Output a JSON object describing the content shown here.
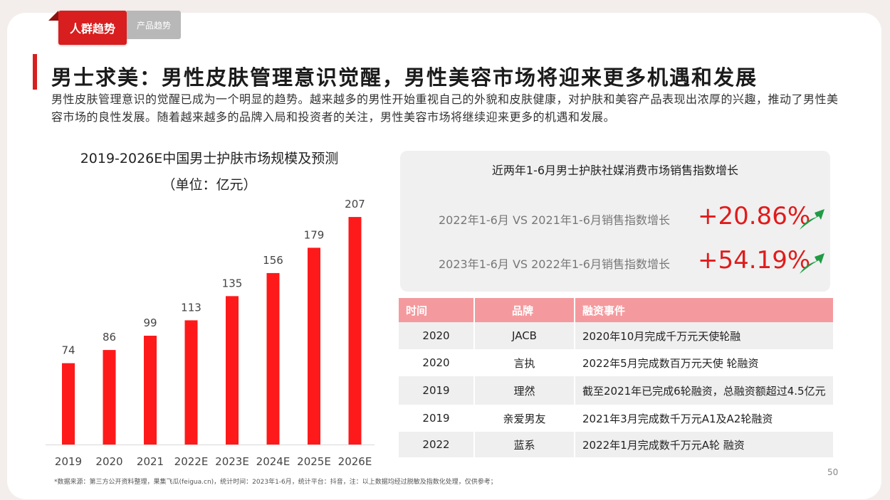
{
  "tabs": [
    {
      "label": "人群趋势",
      "active": true
    },
    {
      "label": "产品趋势",
      "active": false
    }
  ],
  "title": "男士求美：男性皮肤管理意识觉醒，男性美容市场将迎来更多机遇和发展",
  "description": "男性皮肤管理意识的觉醒已成为一个明显的趋势。越来越多的男性开始重视自己的外貌和皮肤健康，对护肤和美容产品表现出浓厚的兴趣，推动了男性美容市场的良性发展。随着越来越多的品牌入局和投资者的关注，男性美容市场将继续迎来更多的机遇和发展。",
  "chart_data": {
    "type": "bar",
    "title": "2019-2026E中国男士护肤市场规模及预测",
    "subtitle": "（单位：亿元）",
    "categories": [
      "2019",
      "2020",
      "2021",
      "2022E",
      "2023E",
      "2024E",
      "2025E",
      "2026E"
    ],
    "values": [
      74,
      86,
      99,
      113,
      135,
      156,
      179,
      207
    ],
    "ylim": [
      0,
      220
    ],
    "bar_color": "#fe1a1a",
    "grid": false,
    "legend": "none"
  },
  "growth_panel": {
    "title": "近两年1-6月男士护肤社媒消费市场销售指数增长",
    "rows": [
      {
        "label": "2022年1-6月 VS 2021年1-6月销售指数增长",
        "value": "+20.86%"
      },
      {
        "label": "2023年1-6月 VS 2022年1-6月销售指数增长",
        "value": "+54.19%"
      }
    ],
    "icon": "trend-up-arrow-icon",
    "value_color": "#e01b1b",
    "arrow_color": "#1f9b45"
  },
  "funding_table": {
    "headers": [
      "时间",
      "品牌",
      "融资事件"
    ],
    "rows": [
      [
        "2020",
        "JACB",
        "2020年10月完成千万元天使轮融"
      ],
      [
        "2020",
        "言执",
        "2022年5月完成数百万元天使 轮融资"
      ],
      [
        "2019",
        "理然",
        "截至2021年已完成6轮融资，总融资额超过4.5亿元"
      ],
      [
        "2019",
        "亲爱男友",
        "2021年3月完成数千万元A1及A2轮融资"
      ],
      [
        "2022",
        "蓝系",
        "2022年1月完成数千万元A轮 融资"
      ]
    ],
    "header_color": "#f49a9e"
  },
  "footnote": "*数据来源：第三方公开资料整理，果集飞瓜(feigua.cn)，统计时间：2023年1-6月，统计平台：抖音，注：以上数据均经过脱敏及指数化处理，仅供参考；",
  "page_number": "50",
  "colors": {
    "accent": "#d81e1e",
    "background": "#f3eeec"
  }
}
